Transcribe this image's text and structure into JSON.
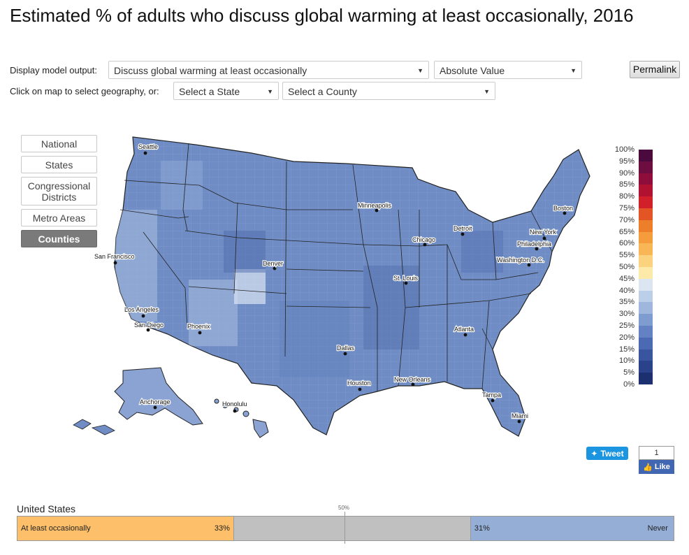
{
  "title": "Estimated % of adults who discuss global warming at least occasionally, 2016",
  "controls": {
    "display_label": "Display model output:",
    "output_select": "Discuss global warming at least occasionally",
    "value_select": "Absolute Value",
    "geo_label": "Click on map to select geography, or:",
    "state_select": "Select a State",
    "county_select": "Select a County",
    "permalink": "Permalink"
  },
  "geo_buttons": [
    {
      "label": "National",
      "active": false
    },
    {
      "label": "States",
      "active": false
    },
    {
      "label": "Congressional Districts",
      "active": false
    },
    {
      "label": "Metro Areas",
      "active": false
    },
    {
      "label": "Counties",
      "active": true
    }
  ],
  "cities": [
    "Seattle",
    "San Francisco",
    "Los Angeles",
    "San Diego",
    "Phoenix",
    "Denver",
    "Dallas",
    "Houston",
    "Minneapolis",
    "Chicago",
    "St. Louis",
    "Detroit",
    "New Orleans",
    "Atlanta",
    "Tampa",
    "Miami",
    "Boston",
    "New York",
    "Philadelphia",
    "Washington D.C.",
    "Anchorage",
    "Honolulu"
  ],
  "legend": {
    "ticks": [
      "100%",
      "95%",
      "90%",
      "85%",
      "80%",
      "75%",
      "70%",
      "65%",
      "60%",
      "55%",
      "50%",
      "45%",
      "40%",
      "35%",
      "30%",
      "25%",
      "20%",
      "15%",
      "10%",
      "5%",
      "0%"
    ],
    "colors": [
      "#4a0a3e",
      "#6e0d3f",
      "#8f0d3a",
      "#b21232",
      "#d1202a",
      "#e35525",
      "#ee7f2a",
      "#f59c3c",
      "#f8b657",
      "#fbd27d",
      "#fde9a8",
      "#dce6f2",
      "#bccfe8",
      "#9fb7dc",
      "#7f9cd0",
      "#6482c3",
      "#4c6ab4",
      "#3a55a0",
      "#2a4289",
      "#1c2f6f",
      "#0f1e55"
    ]
  },
  "social": {
    "tweet": "Tweet",
    "like_count": "1",
    "like": "Like"
  },
  "summary": {
    "region": "United States",
    "midpoint_label": "50%",
    "left_label": "At least occasionally",
    "left_value": 33,
    "left_value_text": "33%",
    "right_label": "Never",
    "right_value": 31,
    "right_value_text": "31%",
    "left_color": "#fdbf6a",
    "middle_color": "#c0c0c0",
    "right_color": "#95aed6"
  },
  "map_colors": {
    "fill": "#6f8dc4",
    "light": "#a8bde0",
    "dark": "#4f6cae",
    "stroke": "#222222"
  }
}
